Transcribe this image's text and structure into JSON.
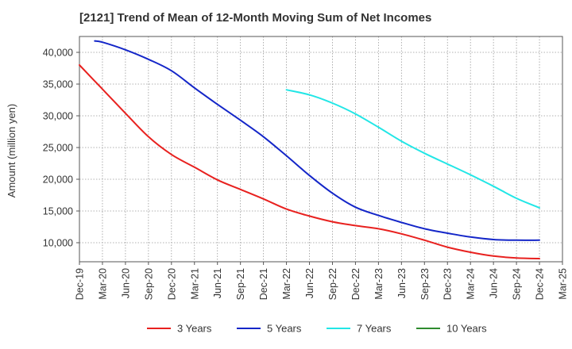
{
  "chart_data": {
    "type": "line",
    "title": "[2121]  Trend of Mean of 12-Month Moving Sum of Net Incomes",
    "ylabel": "Amount (million yen)",
    "xlabel": "",
    "ylim": [
      7000,
      42500
    ],
    "y_ticks": [
      10000,
      15000,
      20000,
      25000,
      30000,
      35000,
      40000
    ],
    "y_tick_labels": [
      "10,000",
      "15,000",
      "20,000",
      "25,000",
      "30,000",
      "35,000",
      "40,000"
    ],
    "x_tick_labels": [
      "Dec-19",
      "Mar-20",
      "Jun-20",
      "Sep-20",
      "Dec-20",
      "Mar-21",
      "Jun-21",
      "Sep-21",
      "Dec-21",
      "Mar-22",
      "Jun-22",
      "Sep-22",
      "Dec-22",
      "Mar-23",
      "Jun-23",
      "Sep-23",
      "Dec-23",
      "Mar-24",
      "Jun-24",
      "Sep-24",
      "Dec-24",
      "Mar-25"
    ],
    "grid": true,
    "legend_position": "bottom",
    "series": [
      {
        "name": "3 Years",
        "color": "#e8211f",
        "x": [
          "2019-12",
          "2020-03",
          "2020-06",
          "2020-09",
          "2020-12",
          "2021-03",
          "2021-06",
          "2021-09",
          "2021-12",
          "2022-03",
          "2022-06",
          "2022-09",
          "2022-12",
          "2023-03",
          "2023-06",
          "2023-09",
          "2023-12",
          "2024-03",
          "2024-06",
          "2024-09",
          "2024-12"
        ],
        "values": [
          38000,
          34200,
          30400,
          26700,
          23900,
          21900,
          19900,
          18400,
          16900,
          15300,
          14200,
          13300,
          12700,
          12200,
          11400,
          10400,
          9300,
          8500,
          7900,
          7600,
          7500
        ]
      },
      {
        "name": "5 Years",
        "color": "#1426c8",
        "x": [
          "2020-02",
          "2020-03",
          "2020-06",
          "2020-09",
          "2020-12",
          "2021-03",
          "2021-06",
          "2021-09",
          "2021-12",
          "2022-03",
          "2022-06",
          "2022-09",
          "2022-12",
          "2023-03",
          "2023-06",
          "2023-09",
          "2023-12",
          "2024-03",
          "2024-06",
          "2024-09",
          "2024-12"
        ],
        "values": [
          41800,
          41600,
          40400,
          38900,
          37100,
          34400,
          31800,
          29300,
          26700,
          23700,
          20600,
          17800,
          15600,
          14300,
          13200,
          12200,
          11500,
          10900,
          10500,
          10400,
          10400
        ]
      },
      {
        "name": "7 Years",
        "color": "#22e6e6",
        "x": [
          "2022-03",
          "2022-06",
          "2022-09",
          "2022-12",
          "2023-03",
          "2023-06",
          "2023-09",
          "2023-12",
          "2024-03",
          "2024-06",
          "2024-09",
          "2024-12"
        ],
        "values": [
          34100,
          33300,
          32000,
          30300,
          28200,
          26000,
          24100,
          22400,
          20700,
          18900,
          17000,
          15500
        ]
      },
      {
        "name": "10 Years",
        "color": "#2e8b2e",
        "x": [],
        "values": []
      }
    ]
  }
}
